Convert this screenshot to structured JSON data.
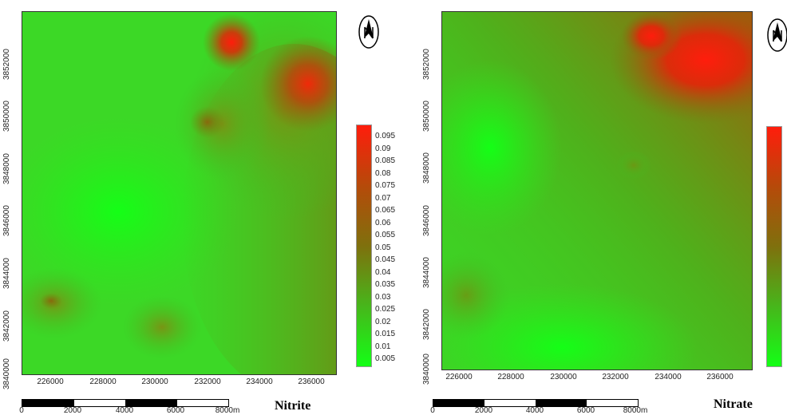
{
  "maps": [
    {
      "title": "Nitrite",
      "x_ticks": [
        "226000",
        "228000",
        "230000",
        "232000",
        "234000",
        "236000"
      ],
      "y_ticks": [
        "3852000",
        "3850000",
        "3848000",
        "3846000",
        "3844000",
        "3842000",
        "3840000"
      ],
      "legend": [
        "0.095",
        "0.09",
        "0.085",
        "0.08",
        "0.075",
        "0.07",
        "0.065",
        "0.06",
        "0.055",
        "0.05",
        "0.045",
        "0.04",
        "0.035",
        "0.03",
        "0.025",
        "0.02",
        "0.015",
        "0.01",
        "0.005"
      ],
      "scale_labels": [
        "0",
        "2000",
        "4000",
        "6000",
        "8000m"
      ]
    },
    {
      "title": "Nitrate",
      "x_ticks": [
        "226000",
        "228000",
        "230000",
        "232000",
        "234000",
        "236000"
      ],
      "y_ticks": [
        "3852000",
        "3850000",
        "3848000",
        "3846000",
        "3844000",
        "3842000",
        "3840000"
      ],
      "scale_labels": [
        "0",
        "2000",
        "4000",
        "6000",
        "8000m"
      ]
    }
  ],
  "colors": {
    "high": "#ff1d0c",
    "mid": "#7f700d",
    "low": "#14ff16"
  }
}
